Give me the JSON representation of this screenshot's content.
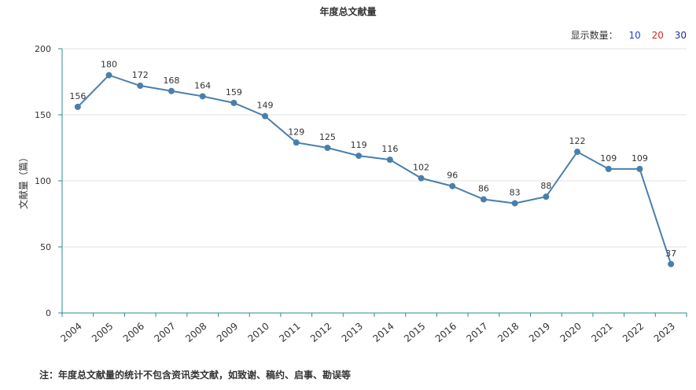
{
  "page": {
    "title": "年度总文献量",
    "display_count": {
      "label": "显示数量：",
      "options": [
        "10",
        "20",
        "30"
      ]
    },
    "note": "注：年度总文献量的统计不包含资讯类文献，如致谢、稿约、启事、勘误等"
  },
  "chart_data": {
    "type": "line",
    "title": "年度总文献量",
    "xlabel": "",
    "ylabel": "文献量（篇）",
    "ylim": [
      0,
      200
    ],
    "yticks": [
      0,
      50,
      100,
      150,
      200
    ],
    "grid": true,
    "categories": [
      "2004",
      "2005",
      "2006",
      "2007",
      "2008",
      "2009",
      "2010",
      "2011",
      "2012",
      "2013",
      "2014",
      "2015",
      "2016",
      "2017",
      "2018",
      "2019",
      "2020",
      "2021",
      "2022",
      "2023"
    ],
    "series": [
      {
        "values": [
          156,
          180,
          172,
          168,
          164,
          159,
          149,
          129,
          125,
          119,
          116,
          102,
          96,
          86,
          83,
          88,
          122,
          109,
          109,
          37
        ]
      }
    ],
    "colors": {
      "line": "#4a7fad",
      "point": "#4a7fad",
      "axis": "#2a8a9a",
      "grid": "#e0e0e0"
    }
  }
}
